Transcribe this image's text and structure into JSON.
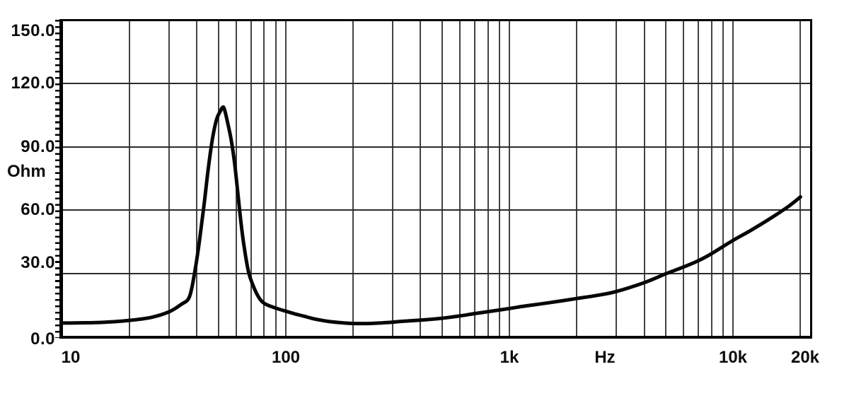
{
  "colors": {
    "background": "#ffffff",
    "axis": "#000000",
    "vertical_grid": "#434343",
    "horizontal_grid": "#2b2b2b",
    "curve": "#070707",
    "label_text": "#0d0d0d"
  },
  "chart_data": {
    "type": "line",
    "title": "",
    "description": "Loudspeaker impedance magnitude versus frequency",
    "grid": true,
    "legend": "none",
    "x_axis": {
      "label": "Hz",
      "scale": "log",
      "min": 10,
      "max": 22400,
      "ticks": [
        10,
        100,
        1000,
        10000,
        20000
      ],
      "tick_labels": [
        "10",
        "100",
        "1k",
        "10k",
        "20k"
      ]
    },
    "y_axis": {
      "label": "Ohm",
      "scale": "linear",
      "min": 0,
      "max": 150,
      "ticks": [
        0,
        30,
        60,
        90,
        120,
        150
      ],
      "tick_labels": [
        "0.0",
        "30.0",
        "60.0",
        "90.0",
        "120.0",
        "150.0"
      ],
      "minor_tick_step": 3
    },
    "resonance_peak": {
      "frequency_hz": 52,
      "impedance_ohm": 108.5
    },
    "minimum": {
      "frequency_hz": 200,
      "impedance_ohm": 6.5
    },
    "series": [
      {
        "name": "Impedance",
        "points": [
          [
            10,
            6.7
          ],
          [
            12,
            6.8
          ],
          [
            15,
            7.0
          ],
          [
            20,
            8.0
          ],
          [
            25,
            9.4
          ],
          [
            30,
            12.0
          ],
          [
            34,
            15.5
          ],
          [
            37,
            19.0
          ],
          [
            39,
            30.0
          ],
          [
            41,
            45.0
          ],
          [
            43,
            62.0
          ],
          [
            45,
            80.0
          ],
          [
            47,
            94.0
          ],
          [
            49,
            103.0
          ],
          [
            51,
            107.0
          ],
          [
            52,
            108.5
          ],
          [
            53,
            108.0
          ],
          [
            55,
            101.0
          ],
          [
            57,
            93.0
          ],
          [
            59,
            82.0
          ],
          [
            61,
            68.0
          ],
          [
            63,
            54.0
          ],
          [
            65,
            43.0
          ],
          [
            68,
            31.0
          ],
          [
            71,
            25.0
          ],
          [
            75,
            19.5
          ],
          [
            80,
            16.0
          ],
          [
            90,
            13.8
          ],
          [
            100,
            12.3
          ],
          [
            110,
            11.0
          ],
          [
            120,
            10.0
          ],
          [
            135,
            8.6
          ],
          [
            155,
            7.5
          ],
          [
            175,
            6.9
          ],
          [
            200,
            6.5
          ],
          [
            240,
            6.5
          ],
          [
            280,
            6.9
          ],
          [
            340,
            7.6
          ],
          [
            400,
            8.1
          ],
          [
            500,
            9.0
          ],
          [
            600,
            10.1
          ],
          [
            700,
            11.2
          ],
          [
            850,
            12.5
          ],
          [
            1000,
            13.6
          ],
          [
            1200,
            14.9
          ],
          [
            1500,
            16.3
          ],
          [
            2000,
            18.3
          ],
          [
            2500,
            19.9
          ],
          [
            3000,
            21.6
          ],
          [
            4000,
            25.8
          ],
          [
            5000,
            30.0
          ],
          [
            6000,
            33.2
          ],
          [
            7000,
            36.2
          ],
          [
            8000,
            39.5
          ],
          [
            10000,
            45.8
          ],
          [
            12000,
            50.5
          ],
          [
            15000,
            56.8
          ],
          [
            17500,
            61.5
          ],
          [
            20000,
            66.3
          ]
        ]
      }
    ]
  }
}
